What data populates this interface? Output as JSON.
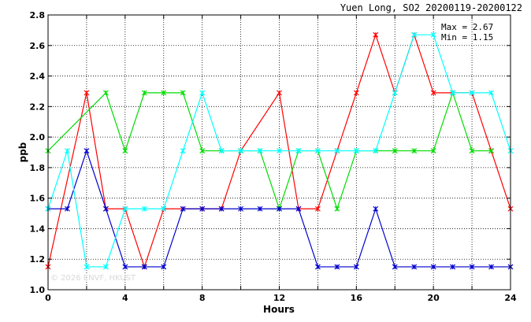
{
  "chart_data": {
    "type": "line",
    "title": "Yuen Long, SO2 20200119-20200122",
    "xlabel": "Hours",
    "ylabel": "ppb",
    "xlim": [
      0,
      24
    ],
    "ylim": [
      1.0,
      2.8
    ],
    "xticks": [
      0,
      4,
      8,
      12,
      16,
      20,
      24
    ],
    "yticks": [
      1.0,
      1.2,
      1.4,
      1.6,
      1.8,
      2.0,
      2.2,
      2.4,
      2.6,
      2.8
    ],
    "grid": true,
    "stats": {
      "max_label": "Max = 2.67",
      "min_label": "Min = 1.15"
    },
    "watermark": "© 2026 ENVF, HKUST",
    "x": [
      0,
      1,
      2,
      3,
      4,
      5,
      6,
      7,
      8,
      9,
      10,
      11,
      12,
      13,
      14,
      15,
      16,
      17,
      18,
      19,
      20,
      21,
      22,
      23,
      24
    ],
    "series": [
      {
        "color": "#ff0000",
        "values": [
          1.15,
          null,
          2.29,
          1.53,
          1.53,
          1.15,
          1.53,
          1.53,
          1.53,
          1.53,
          1.91,
          null,
          2.29,
          1.53,
          1.53,
          1.91,
          2.29,
          2.67,
          2.29,
          2.67,
          2.29,
          2.29,
          2.29,
          1.91,
          1.53
        ]
      },
      {
        "color": "#00dd00",
        "values": [
          1.91,
          null,
          null,
          2.29,
          1.91,
          2.29,
          2.29,
          2.29,
          1.91,
          1.91,
          1.91,
          1.91,
          1.53,
          1.91,
          1.91,
          1.53,
          1.91,
          1.91,
          1.91,
          1.91,
          1.91,
          2.29,
          1.91,
          1.91,
          null
        ]
      },
      {
        "color": "#0000cc",
        "values": [
          1.53,
          1.53,
          1.91,
          1.53,
          1.15,
          1.15,
          1.15,
          1.53,
          1.53,
          1.53,
          1.53,
          1.53,
          1.53,
          1.53,
          1.15,
          1.15,
          1.15,
          1.53,
          1.15,
          1.15,
          1.15,
          1.15,
          1.15,
          1.15,
          1.15
        ]
      },
      {
        "color": "#00ffff",
        "values": [
          1.53,
          1.91,
          1.15,
          1.15,
          1.53,
          1.53,
          1.53,
          1.91,
          2.29,
          1.91,
          1.91,
          1.91,
          1.91,
          1.91,
          1.91,
          1.91,
          1.91,
          1.91,
          2.29,
          2.67,
          2.67,
          2.29,
          2.29,
          2.29,
          1.91
        ]
      }
    ]
  }
}
